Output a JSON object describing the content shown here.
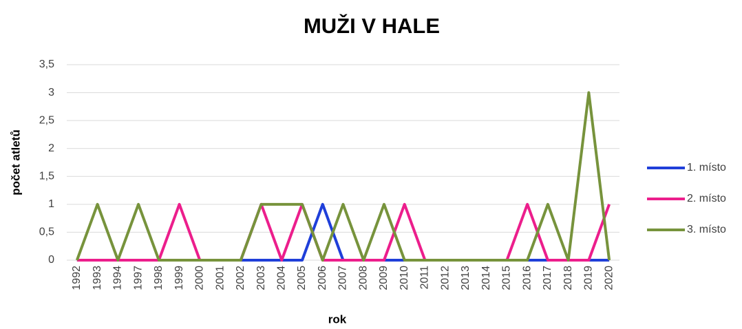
{
  "chart_data": {
    "type": "line",
    "title": "MUŽI V HALE",
    "x_label": "rok",
    "y_label": "počet atletů",
    "categories": [
      "1992",
      "1993",
      "1994",
      "1997",
      "1998",
      "1999",
      "2000",
      "2001",
      "2002",
      "2003",
      "2004",
      "2005",
      "2006",
      "2007",
      "2008",
      "2009",
      "2010",
      "2011",
      "2012",
      "2013",
      "2014",
      "2015",
      "2016",
      "2017",
      "2018",
      "2019",
      "2020"
    ],
    "series": [
      {
        "name": "1. místo",
        "color": "#1f3fd9",
        "values": [
          0,
          0,
          0,
          0,
          0,
          0,
          0,
          0,
          0,
          0,
          0,
          0,
          1,
          0,
          0,
          0,
          0,
          0,
          0,
          0,
          0,
          0,
          0,
          0,
          0,
          0,
          0
        ]
      },
      {
        "name": "2. místo",
        "color": "#ec1e8c",
        "values": [
          0,
          0,
          0,
          0,
          0,
          1,
          0,
          0,
          0,
          1,
          0,
          1,
          0,
          0,
          0,
          0,
          1,
          0,
          0,
          0,
          0,
          0,
          1,
          0,
          0,
          0,
          1
        ]
      },
      {
        "name": "3. místo",
        "color": "#77933c",
        "values": [
          0,
          1,
          0,
          1,
          0,
          0,
          0,
          0,
          0,
          1,
          1,
          1,
          0,
          1,
          0,
          1,
          0,
          0,
          0,
          0,
          0,
          0,
          0,
          1,
          0,
          3,
          0
        ]
      }
    ],
    "ylim": [
      0,
      3.5
    ],
    "yticks": [
      0,
      {
        "value": 0.5,
        "label": "0,5"
      },
      1,
      {
        "value": 1.5,
        "label": "1,5"
      },
      2,
      {
        "value": 2.5,
        "label": "2,5"
      },
      3,
      {
        "value": 3.5,
        "label": "3,5"
      }
    ],
    "grid": true,
    "legend": "right"
  }
}
